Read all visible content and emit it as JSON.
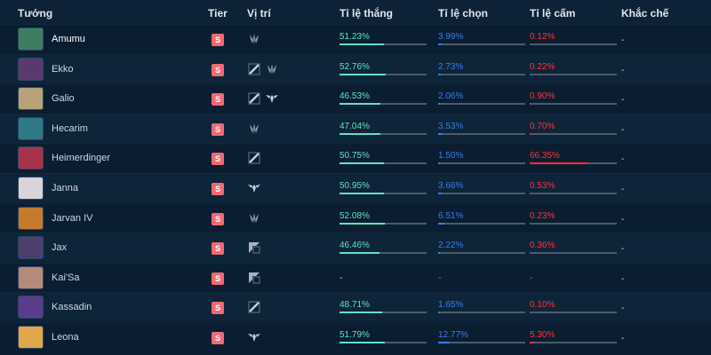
{
  "header": {
    "champion": "Tướng",
    "tier": "Tier",
    "position": "Vị trí",
    "win_rate": "Tỉ lệ thắng",
    "pick_rate": "Tỉ lệ chọn",
    "ban_rate": "Tỉ lệ cấm",
    "counter": "Khắc chế"
  },
  "colors": {
    "win": "#5fe3c3",
    "pick": "#3a7cf0",
    "ban": "#ff3140",
    "tier": "#ef6b74"
  },
  "rows": [
    {
      "name": "Amumu",
      "tier": "S",
      "roles": [
        "jungle-icon"
      ],
      "win": "51.23%",
      "pick": "3.99%",
      "ban": "0.12%",
      "counter": "-",
      "win_frac": 0.51,
      "pick_frac": 0.04,
      "ban_frac": 0.0,
      "avatar_color": "#3f7d63"
    },
    {
      "name": "Ekko",
      "tier": "S",
      "roles": [
        "mid-lane-icon",
        "jungle-icon"
      ],
      "win": "52.76%",
      "pick": "2.73%",
      "ban": "0.22%",
      "counter": "-",
      "win_frac": 0.53,
      "pick_frac": 0.03,
      "ban_frac": 0.0,
      "avatar_color": "#5a3a6e"
    },
    {
      "name": "Galio",
      "tier": "S",
      "roles": [
        "mid-lane-icon",
        "support-icon"
      ],
      "win": "46.53%",
      "pick": "2.06%",
      "ban": "0.90%",
      "counter": "-",
      "win_frac": 0.47,
      "pick_frac": 0.02,
      "ban_frac": 0.01,
      "avatar_color": "#b8a27a"
    },
    {
      "name": "Hecarim",
      "tier": "S",
      "roles": [
        "jungle-icon"
      ],
      "win": "47.04%",
      "pick": "3.53%",
      "ban": "0.70%",
      "counter": "-",
      "win_frac": 0.47,
      "pick_frac": 0.04,
      "ban_frac": 0.01,
      "avatar_color": "#2f7a86"
    },
    {
      "name": "Heimerdinger",
      "tier": "S",
      "roles": [
        "mid-lane-icon"
      ],
      "win": "50.75%",
      "pick": "1.50%",
      "ban": "66.35%",
      "counter": "-",
      "win_frac": 0.51,
      "pick_frac": 0.02,
      "ban_frac": 0.66,
      "avatar_color": "#a8324a"
    },
    {
      "name": "Janna",
      "tier": "S",
      "roles": [
        "support-icon"
      ],
      "win": "50.95%",
      "pick": "3.66%",
      "ban": "0.53%",
      "counter": "-",
      "win_frac": 0.51,
      "pick_frac": 0.04,
      "ban_frac": 0.01,
      "avatar_color": "#d9d3dc"
    },
    {
      "name": "Jarvan IV",
      "tier": "S",
      "roles": [
        "jungle-icon"
      ],
      "win": "52.08%",
      "pick": "6.51%",
      "ban": "0.23%",
      "counter": "-",
      "win_frac": 0.52,
      "pick_frac": 0.07,
      "ban_frac": 0.0,
      "avatar_color": "#c77a2e"
    },
    {
      "name": "Jax",
      "tier": "S",
      "roles": [
        "top-lane-icon"
      ],
      "win": "46.46%",
      "pick": "2.22%",
      "ban": "0.36%",
      "counter": "-",
      "win_frac": 0.46,
      "pick_frac": 0.02,
      "ban_frac": 0.0,
      "avatar_color": "#4c3f6e"
    },
    {
      "name": "Kai'Sa",
      "tier": "S",
      "roles": [
        "top-lane-icon"
      ],
      "win": "-",
      "pick": "-",
      "ban": "-",
      "counter": "-",
      "win_frac": null,
      "pick_frac": null,
      "ban_frac": null,
      "avatar_color": "#b58a7a"
    },
    {
      "name": "Kassadin",
      "tier": "S",
      "roles": [
        "mid-lane-icon"
      ],
      "win": "48.71%",
      "pick": "1.65%",
      "ban": "0.10%",
      "counter": "-",
      "win_frac": 0.49,
      "pick_frac": 0.02,
      "ban_frac": 0.0,
      "avatar_color": "#5b3b8c"
    },
    {
      "name": "Leona",
      "tier": "S",
      "roles": [
        "support-icon"
      ],
      "win": "51.79%",
      "pick": "12.77%",
      "ban": "5.30%",
      "counter": "-",
      "win_frac": 0.52,
      "pick_frac": 0.13,
      "ban_frac": 0.05,
      "avatar_color": "#e0a84a"
    }
  ]
}
